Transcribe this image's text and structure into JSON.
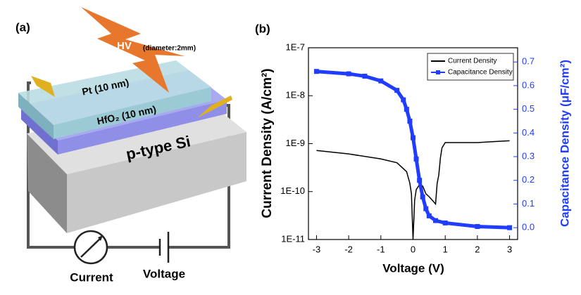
{
  "panel_a": {
    "label": "(a)",
    "hv": "HV",
    "hv_note": "(diameter:2mm)",
    "layers": [
      "Pt (10 nm)",
      "HfO₂ (10 nm)",
      "p-type Si"
    ],
    "current": "Current",
    "voltage": "Voltage"
  },
  "chart_data": {
    "type": "line",
    "panel_label": "(b)",
    "xlabel": "Voltage (V)",
    "ylabel": "Current Density (A/cm²)",
    "y2label": "Capacitance Density (μF/cm²)",
    "xlim": [
      -3.25,
      3.25
    ],
    "xticks": [
      -3,
      -2,
      -1,
      0,
      1,
      2,
      3
    ],
    "ylim": [
      1e-11,
      1e-07
    ],
    "log_y": true,
    "yticks": [
      {
        "value": 1e-11,
        "label": "1E-11"
      },
      {
        "value": 1e-10,
        "label": "1E-10"
      },
      {
        "value": 1e-09,
        "label": "1E-9"
      },
      {
        "value": 1e-08,
        "label": "1E-8"
      },
      {
        "value": 1e-07,
        "label": "1E-7"
      }
    ],
    "y2lim": [
      -0.05,
      0.76
    ],
    "y2ticks": [
      {
        "value": 0,
        "label": "0.0"
      },
      0.1,
      0.2,
      0.3,
      0.4,
      0.5,
      0.6,
      0.7
    ],
    "legend": "upper right",
    "series": [
      {
        "name": "Current Density",
        "color": "#000000",
        "x": [
          -3,
          -2,
          -1,
          -0.5,
          -0.2,
          -0.1,
          -0.05,
          0,
          0.05,
          0.1,
          0.2,
          0.3,
          0.4,
          0.5,
          0.6,
          0.7,
          0.75,
          0.8,
          0.85,
          0.9,
          1.0,
          1.5,
          2,
          2.5,
          3
        ],
        "values": [
          7.2e-10,
          6.1e-10,
          4.8e-10,
          4e-10,
          2.6e-10,
          1.5e-10,
          9e-11,
          1e-11,
          6.6e-11,
          1.1e-10,
          1.4e-10,
          1.3e-10,
          9e-11,
          7.8e-11,
          6.6e-11,
          5.5e-11,
          1.5e-10,
          2.2e-10,
          5e-10,
          8.2e-10,
          1.05e-09,
          1.05e-09,
          1.05e-09,
          1.1e-09,
          1.15e-09
        ]
      },
      {
        "name": "Capacitance Density",
        "color": "#1f3cff",
        "axis": "y2",
        "x": [
          -3,
          -2,
          -1.5,
          -1,
          -0.5,
          -0.3,
          -0.2,
          -0.1,
          0,
          0.1,
          0.2,
          0.3,
          0.4,
          0.5,
          0.7,
          1,
          2,
          3
        ],
        "values": [
          0.66,
          0.65,
          0.64,
          0.62,
          0.58,
          0.54,
          0.5,
          0.45,
          0.38,
          0.29,
          0.2,
          0.13,
          0.08,
          0.05,
          0.03,
          0.02,
          0.005,
          0
        ]
      }
    ]
  }
}
